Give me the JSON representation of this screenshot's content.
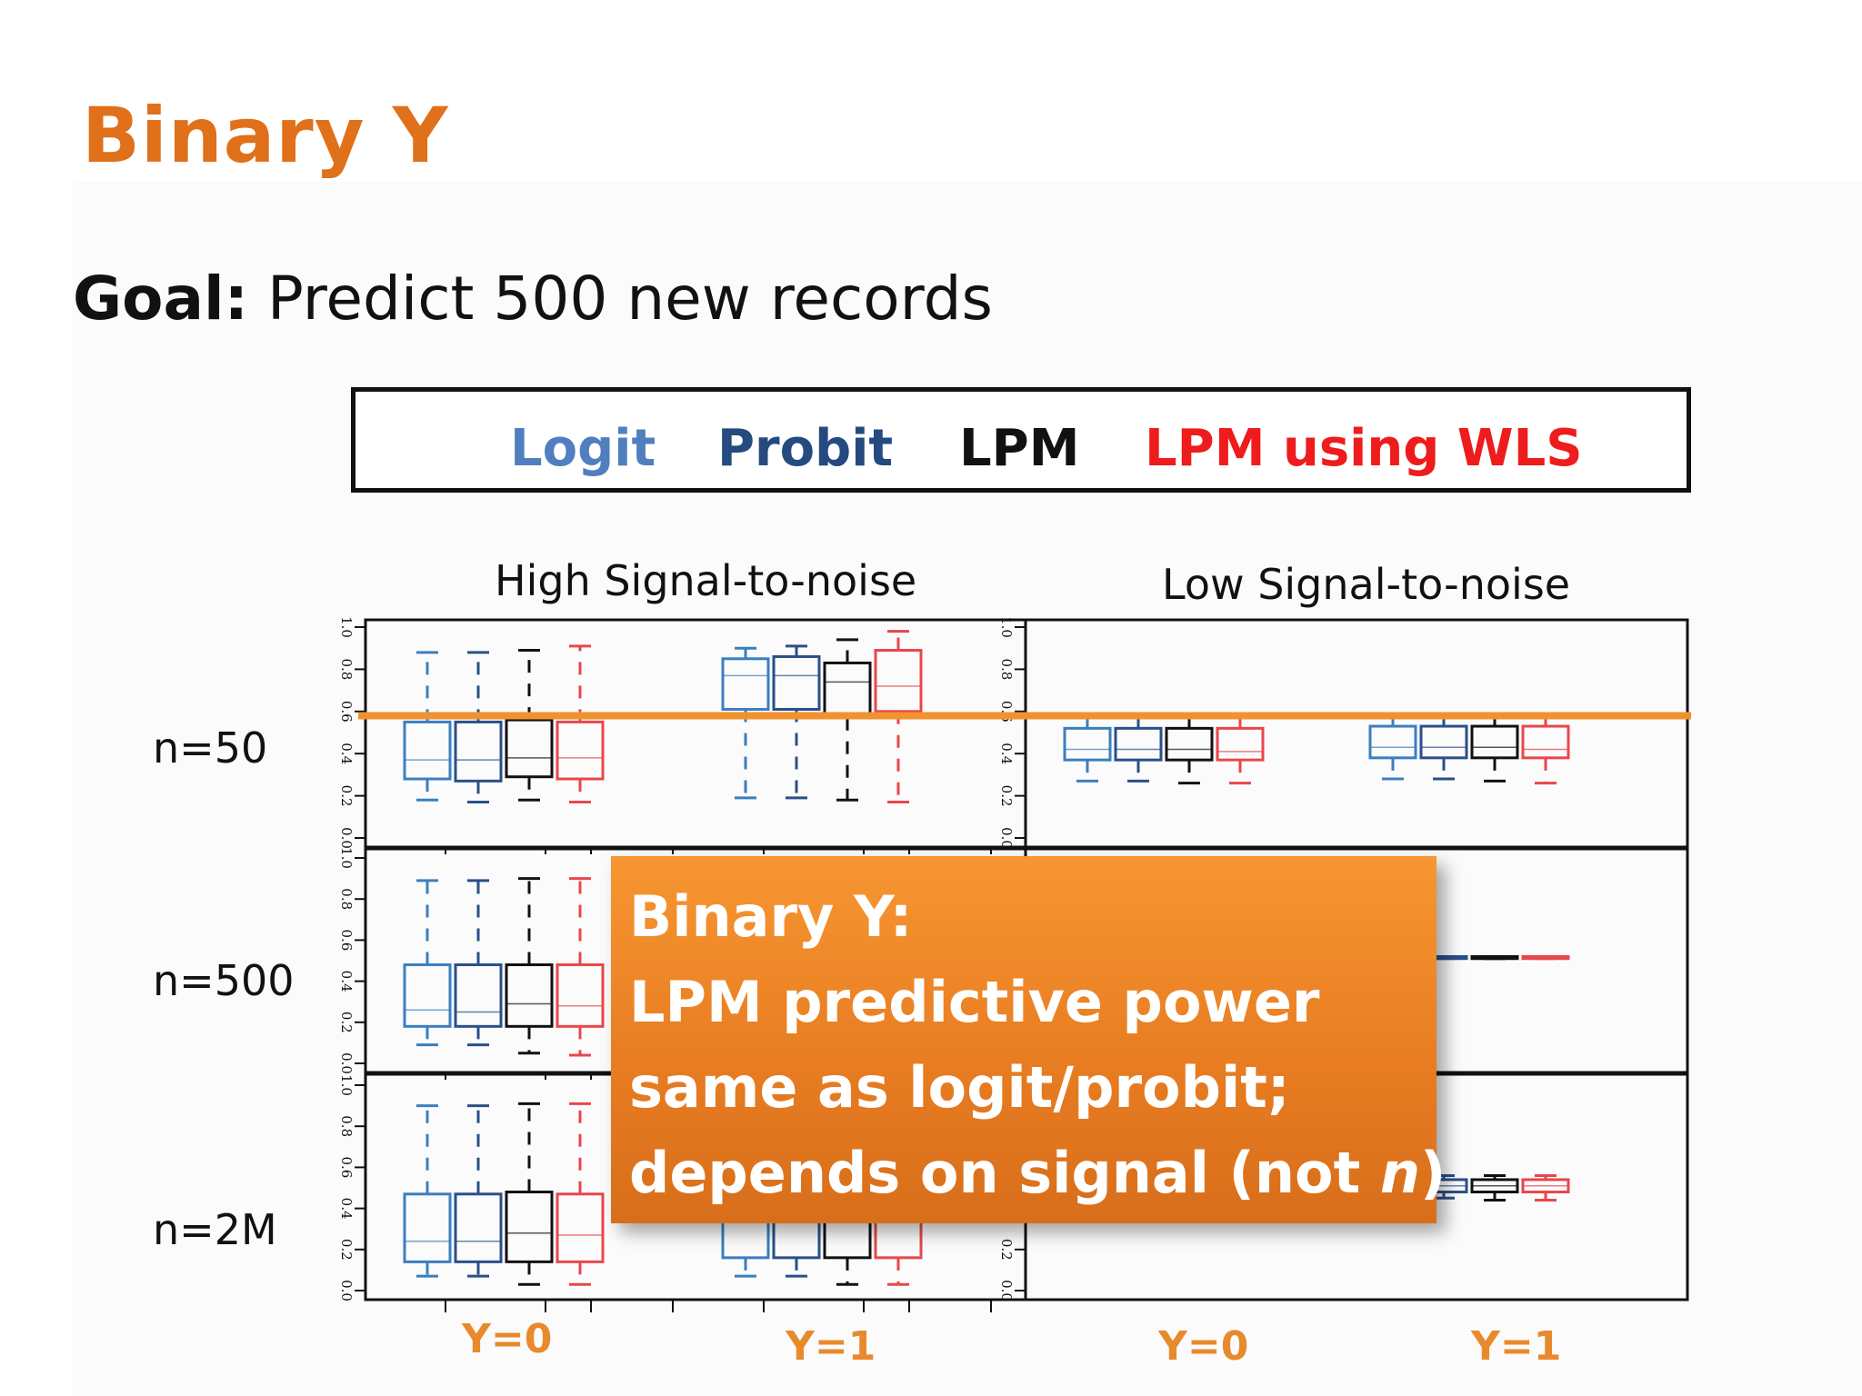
{
  "title": "Binary Y",
  "goal": {
    "bold": "Goal:",
    "text": " Predict 500 new records"
  },
  "legend": [
    {
      "label": "Logit",
      "color": "#4f7fbf"
    },
    {
      "label": "Probit",
      "color": "#244a7f"
    },
    {
      "label": "LPM",
      "color": "#111111"
    },
    {
      "label": "LPM using WLS",
      "color": "#ee1c1c"
    }
  ],
  "panel_titles": [
    "High Signal-to-noise",
    "Low Signal-to-noise"
  ],
  "row_labels": [
    "n=50",
    "n=500",
    "n=2M"
  ],
  "x_group_labels": [
    "Y=0",
    "Y=1",
    "Y=0",
    "Y=1"
  ],
  "callout": {
    "line1": "Binary Y:",
    "line2": "LPM predictive power",
    "line3": "same as logit/probit;",
    "line4_prefix": "depends on signal (not ",
    "line4_italic": "n",
    "line4_suffix": ")"
  },
  "chart_data": {
    "type": "boxplot",
    "series_colors": [
      "#3a7fc0",
      "#2a4f8a",
      "#111111",
      "#e8474c"
    ],
    "reference_line": {
      "y": 0.58,
      "color": "#f2922e"
    },
    "ylim": [
      0,
      1
    ],
    "y_ticks": [
      "0.0",
      "0.2",
      "0.4",
      "0.6",
      "0.8",
      "1.0"
    ],
    "panels": [
      {
        "signal": "High",
        "n": "n=50",
        "groups": [
          {
            "y": "Y=0",
            "boxes": [
              [
                0.18,
                0.28,
                0.37,
                0.55,
                0.88
              ],
              [
                0.17,
                0.27,
                0.37,
                0.55,
                0.88
              ],
              [
                0.18,
                0.29,
                0.38,
                0.56,
                0.89
              ],
              [
                0.17,
                0.28,
                0.38,
                0.55,
                0.91
              ]
            ]
          },
          {
            "y": "Y=1",
            "boxes": [
              [
                0.19,
                0.61,
                0.77,
                0.85,
                0.9
              ],
              [
                0.19,
                0.61,
                0.77,
                0.86,
                0.91
              ],
              [
                0.18,
                0.57,
                0.74,
                0.83,
                0.94
              ],
              [
                0.17,
                0.6,
                0.72,
                0.89,
                0.98
              ]
            ]
          }
        ]
      },
      {
        "signal": "Low",
        "n": "n=50",
        "groups": [
          {
            "y": "Y=0",
            "boxes": [
              [
                0.27,
                0.37,
                0.42,
                0.52,
                0.57
              ],
              [
                0.27,
                0.37,
                0.42,
                0.52,
                0.57
              ],
              [
                0.26,
                0.37,
                0.42,
                0.52,
                0.57
              ],
              [
                0.26,
                0.37,
                0.41,
                0.52,
                0.57
              ]
            ]
          },
          {
            "y": "Y=1",
            "boxes": [
              [
                0.28,
                0.38,
                0.43,
                0.53,
                0.58
              ],
              [
                0.28,
                0.38,
                0.43,
                0.53,
                0.58
              ],
              [
                0.27,
                0.38,
                0.43,
                0.53,
                0.58
              ],
              [
                0.26,
                0.38,
                0.42,
                0.53,
                0.58
              ]
            ]
          }
        ]
      },
      {
        "signal": "High",
        "n": "n=500",
        "groups": [
          {
            "y": "Y=0",
            "boxes": [
              [
                0.09,
                0.18,
                0.26,
                0.48,
                0.89
              ],
              [
                0.09,
                0.18,
                0.25,
                0.48,
                0.89
              ],
              [
                0.05,
                0.18,
                0.29,
                0.48,
                0.9
              ],
              [
                0.04,
                0.18,
                0.28,
                0.48,
                0.9
              ]
            ]
          }
        ]
      },
      {
        "signal": "Low",
        "n": "n=500",
        "groups": [
          {
            "y": "Y=1",
            "boxes": [
              [
                0.51,
                0.51,
                0.515,
                0.52,
                0.52
              ],
              [
                0.51,
                0.51,
                0.515,
                0.52,
                0.52
              ],
              [
                0.51,
                0.51,
                0.515,
                0.52,
                0.52
              ],
              [
                0.51,
                0.51,
                0.515,
                0.52,
                0.52
              ]
            ]
          }
        ]
      },
      {
        "signal": "High",
        "n": "n=2M",
        "groups": [
          {
            "y": "Y=0",
            "boxes": [
              [
                0.07,
                0.14,
                0.24,
                0.47,
                0.9
              ],
              [
                0.07,
                0.14,
                0.24,
                0.47,
                0.9
              ],
              [
                0.03,
                0.14,
                0.28,
                0.48,
                0.91
              ],
              [
                0.03,
                0.14,
                0.27,
                0.47,
                0.91
              ]
            ]
          },
          {
            "y": "Y=1",
            "boxes": [
              [
                0.07,
                0.16,
                0.4,
                0.54,
                0.92
              ],
              [
                0.07,
                0.16,
                0.4,
                0.54,
                0.92
              ],
              [
                0.03,
                0.16,
                0.4,
                0.54,
                0.93
              ],
              [
                0.03,
                0.16,
                0.4,
                0.54,
                0.93
              ]
            ]
          }
        ]
      },
      {
        "signal": "Low",
        "n": "n=2M",
        "groups": [
          {
            "y": "Y=1",
            "boxes": [
              [
                0.45,
                0.48,
                0.51,
                0.54,
                0.56
              ],
              [
                0.45,
                0.48,
                0.51,
                0.54,
                0.56
              ],
              [
                0.44,
                0.48,
                0.51,
                0.54,
                0.56
              ],
              [
                0.44,
                0.48,
                0.51,
                0.54,
                0.56
              ]
            ]
          }
        ]
      }
    ]
  }
}
